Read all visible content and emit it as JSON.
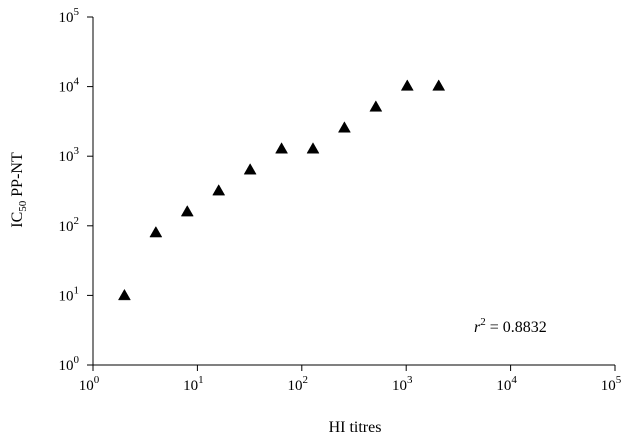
{
  "chart_data": {
    "type": "scatter",
    "xlabel": "HI titres",
    "ylabel": {
      "main": "IC",
      "sub": "50",
      "rest": " PP-NT"
    },
    "xscale": "log",
    "yscale": "log",
    "xlim": [
      1,
      100000
    ],
    "ylim": [
      1,
      100000
    ],
    "grid": false,
    "legend": "none",
    "marker": "filled-triangle",
    "marker_color": "#000000",
    "xticks": [
      {
        "value": 1,
        "base": "10",
        "exp": "0"
      },
      {
        "value": 10,
        "base": "10",
        "exp": "1"
      },
      {
        "value": 100,
        "base": "10",
        "exp": "2"
      },
      {
        "value": 1000,
        "base": "10",
        "exp": "3"
      },
      {
        "value": 10000,
        "base": "10",
        "exp": "4"
      },
      {
        "value": 100000,
        "base": "10",
        "exp": "5"
      }
    ],
    "yticks": [
      {
        "value": 1,
        "base": "10",
        "exp": "0"
      },
      {
        "value": 10,
        "base": "10",
        "exp": "1"
      },
      {
        "value": 100,
        "base": "10",
        "exp": "2"
      },
      {
        "value": 1000,
        "base": "10",
        "exp": "3"
      },
      {
        "value": 10000,
        "base": "10",
        "exp": "4"
      },
      {
        "value": 100000,
        "base": "10",
        "exp": "5"
      }
    ],
    "points": [
      {
        "x": 2,
        "y": 10
      },
      {
        "x": 4,
        "y": 80
      },
      {
        "x": 8,
        "y": 160
      },
      {
        "x": 16,
        "y": 320
      },
      {
        "x": 32,
        "y": 640
      },
      {
        "x": 64,
        "y": 1280
      },
      {
        "x": 128,
        "y": 1280
      },
      {
        "x": 256,
        "y": 2560
      },
      {
        "x": 512,
        "y": 5120
      },
      {
        "x": 1024,
        "y": 10240
      },
      {
        "x": 2048,
        "y": 10240
      }
    ],
    "annotation": {
      "var": "r",
      "exp": "2",
      "text": " = 0.8832"
    }
  }
}
